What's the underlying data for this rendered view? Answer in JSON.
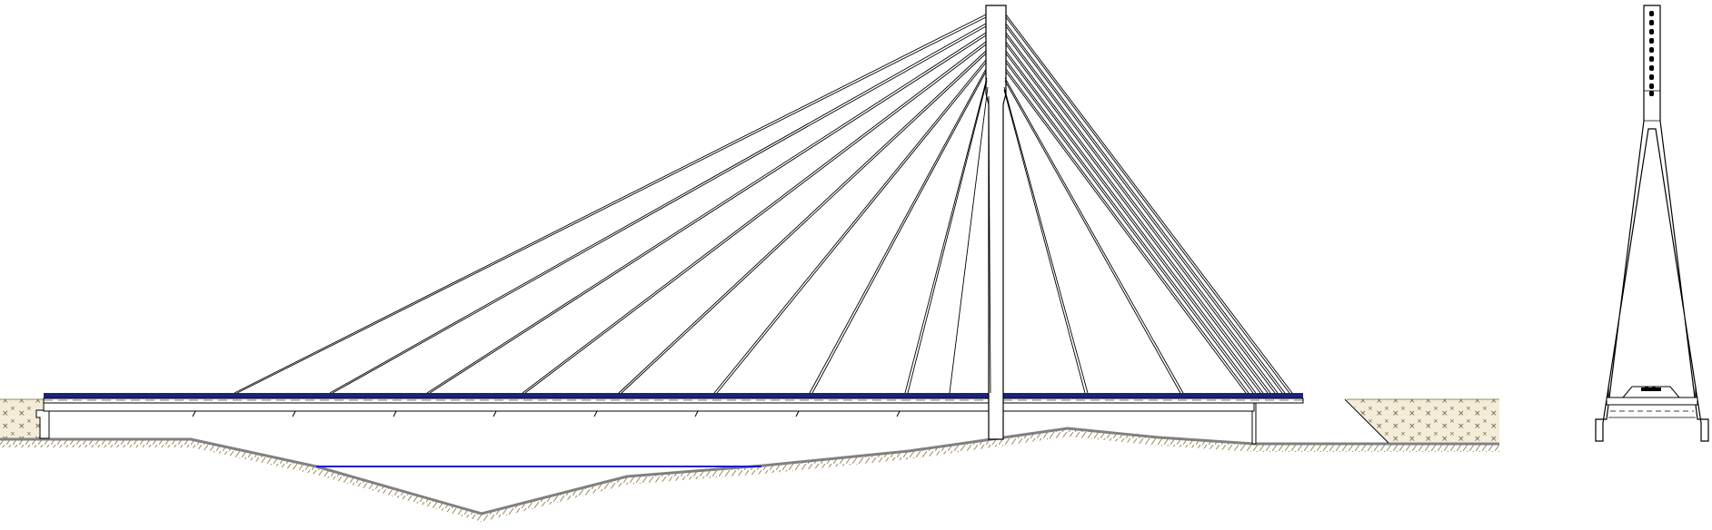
{
  "drawing": {
    "views": [
      "elevation",
      "pylon-cross-section"
    ],
    "colors": {
      "line": "#000000",
      "deck": "#1a237e",
      "water": "#1a1ad6",
      "ground": "#808080",
      "hatch": "#9a8a5a",
      "fill": "#c8b98a",
      "fill_mark": "#6b5f3a"
    },
    "left_span_cables": 10,
    "right_span_cables": 10,
    "anchor_bolts": 10
  }
}
